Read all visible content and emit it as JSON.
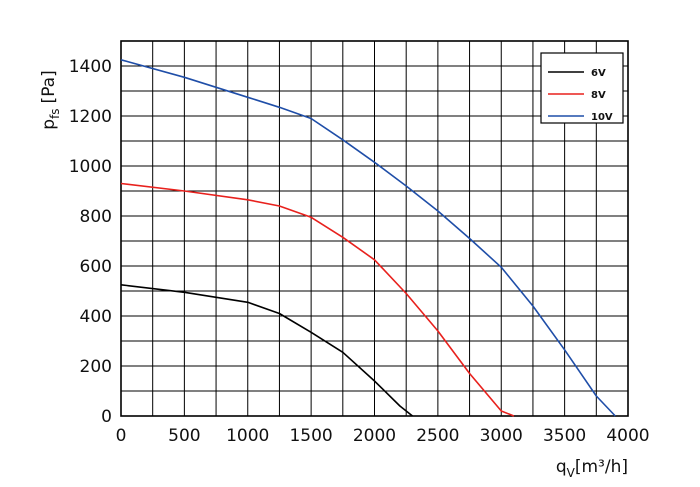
{
  "chart_data": {
    "type": "line",
    "title": "",
    "xlabel_main": "q",
    "xlabel_sub": "V",
    "xlabel_unit": "[m³/h]",
    "ylabel_main": "p",
    "ylabel_sub": "fs",
    "ylabel_unit": "[Pa]",
    "xlim": [
      0,
      4000
    ],
    "ylim": [
      0,
      1500
    ],
    "xticks": [
      0,
      500,
      1000,
      1500,
      2000,
      2500,
      3000,
      3500,
      4000
    ],
    "xtick_labels": [
      "0",
      "500",
      "1000",
      "1500",
      "2000",
      "2500",
      "3000",
      "3500",
      "4000"
    ],
    "yticks": [
      0,
      200,
      400,
      600,
      800,
      1000,
      1200,
      1400
    ],
    "ytick_labels": [
      "0",
      "200",
      "400",
      "600",
      "800",
      "1000",
      "1200",
      "1400"
    ],
    "x_grid_step": 250,
    "y_grid_step": 100,
    "legend_position": "top-right",
    "series": [
      {
        "name": "6V",
        "color": "#000000",
        "points": [
          [
            0,
            525
          ],
          [
            500,
            495
          ],
          [
            1000,
            455
          ],
          [
            1250,
            410
          ],
          [
            1500,
            335
          ],
          [
            1750,
            255
          ],
          [
            2000,
            140
          ],
          [
            2200,
            40
          ],
          [
            2300,
            0
          ]
        ]
      },
      {
        "name": "8V",
        "color": "#e8211d",
        "points": [
          [
            0,
            930
          ],
          [
            500,
            900
          ],
          [
            1000,
            865
          ],
          [
            1250,
            840
          ],
          [
            1500,
            795
          ],
          [
            1750,
            715
          ],
          [
            2000,
            625
          ],
          [
            2250,
            490
          ],
          [
            2500,
            340
          ],
          [
            2750,
            170
          ],
          [
            3000,
            20
          ],
          [
            3100,
            0
          ]
        ]
      },
      {
        "name": "10V",
        "color": "#1f4ea8",
        "points": [
          [
            0,
            1425
          ],
          [
            500,
            1355
          ],
          [
            1000,
            1275
          ],
          [
            1250,
            1235
          ],
          [
            1500,
            1190
          ],
          [
            1750,
            1105
          ],
          [
            2000,
            1015
          ],
          [
            2250,
            920
          ],
          [
            2500,
            820
          ],
          [
            2750,
            710
          ],
          [
            3000,
            595
          ],
          [
            3250,
            440
          ],
          [
            3500,
            265
          ],
          [
            3750,
            80
          ],
          [
            3900,
            0
          ]
        ]
      }
    ]
  }
}
